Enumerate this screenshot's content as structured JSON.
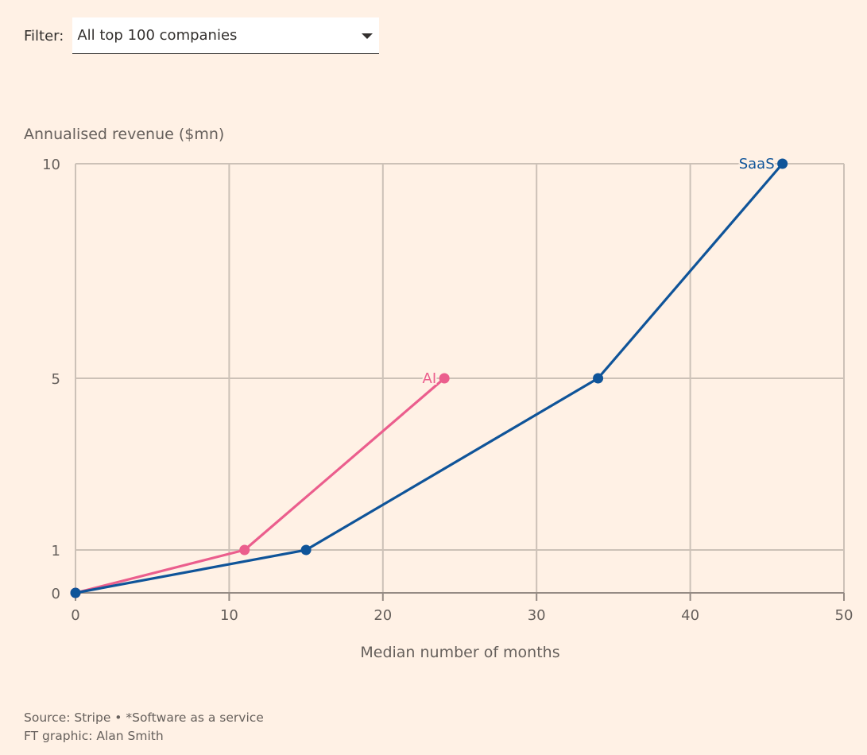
{
  "filter": {
    "label": "Filter:",
    "selected": "All top 100 companies"
  },
  "chart_data": {
    "type": "line",
    "title": "",
    "ylabel": "Annualised revenue ($mn)",
    "xlabel": "Median number of months",
    "xlim": [
      0,
      50
    ],
    "x_ticks": [
      0,
      10,
      20,
      30,
      40,
      50
    ],
    "y_ticks": [
      0,
      1,
      5,
      10
    ],
    "y_scale": "piecewise (ticks at 0, 1, 5, 10)",
    "grid": true,
    "series": [
      {
        "name": "AI",
        "color": "#eb5e8d",
        "x": [
          0,
          11,
          24
        ],
        "y": [
          0,
          1,
          5
        ]
      },
      {
        "name": "SaaS",
        "color": "#0f5499",
        "x": [
          0,
          15,
          34,
          46
        ],
        "y": [
          0,
          1,
          5,
          10
        ]
      }
    ]
  },
  "footer": {
    "source": "Source: Stripe • *Software as a service",
    "credit": "FT graphic: Alan Smith"
  }
}
